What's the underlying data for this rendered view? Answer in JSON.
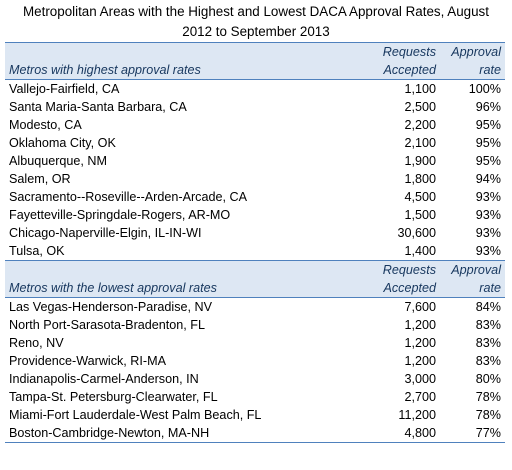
{
  "title_line1": "Metropolitan Areas with the Highest and Lowest DACA Approval Rates, August",
  "title_line2": "2012 to September 2013",
  "chart_data": {
    "type": "table",
    "title": "Metropolitan Areas with the Highest and Lowest DACA Approval Rates, August 2012 to September 2013",
    "columns": [
      "Requests Accepted",
      "Approval rate"
    ],
    "sections": [
      {
        "header": {
          "label": "Metros with highest approval rates",
          "col1_top": "Requests",
          "col1_bottom": "Accepted",
          "col2_top": "Approval",
          "col2_bottom": "rate"
        },
        "rows": [
          {
            "metro": "Vallejo-Fairfield, CA",
            "requests": "1,100",
            "rate": "100%"
          },
          {
            "metro": "Santa Maria-Santa Barbara, CA",
            "requests": "2,500",
            "rate": "96%"
          },
          {
            "metro": "Modesto, CA",
            "requests": "2,200",
            "rate": "95%"
          },
          {
            "metro": "Oklahoma City, OK",
            "requests": "2,100",
            "rate": "95%"
          },
          {
            "metro": "Albuquerque, NM",
            "requests": "1,900",
            "rate": "95%"
          },
          {
            "metro": "Salem, OR",
            "requests": "1,800",
            "rate": "94%"
          },
          {
            "metro": "Sacramento--Roseville--Arden-Arcade, CA",
            "requests": "4,500",
            "rate": "93%"
          },
          {
            "metro": "Fayetteville-Springdale-Rogers, AR-MO",
            "requests": "1,500",
            "rate": "93%"
          },
          {
            "metro": "Chicago-Naperville-Elgin, IL-IN-WI",
            "requests": "30,600",
            "rate": "93%"
          },
          {
            "metro": "Tulsa, OK",
            "requests": "1,400",
            "rate": "93%"
          }
        ]
      },
      {
        "header": {
          "label": "Metros with the lowest approval rates",
          "col1_top": "Requests",
          "col1_bottom": "Accepted",
          "col2_top": "Approval",
          "col2_bottom": "rate"
        },
        "rows": [
          {
            "metro": "Las Vegas-Henderson-Paradise, NV",
            "requests": "7,600",
            "rate": "84%"
          },
          {
            "metro": "North Port-Sarasota-Bradenton, FL",
            "requests": "1,200",
            "rate": "83%"
          },
          {
            "metro": "Reno, NV",
            "requests": "1,200",
            "rate": "83%"
          },
          {
            "metro": "Providence-Warwick, RI-MA",
            "requests": "1,200",
            "rate": "83%"
          },
          {
            "metro": "Indianapolis-Carmel-Anderson, IN",
            "requests": "3,000",
            "rate": "80%"
          },
          {
            "metro": "Tampa-St. Petersburg-Clearwater, FL",
            "requests": "2,700",
            "rate": "78%"
          },
          {
            "metro": "Miami-Fort Lauderdale-West Palm Beach, FL",
            "requests": "11,200",
            "rate": "78%"
          },
          {
            "metro": "Boston-Cambridge-Newton, MA-NH",
            "requests": "4,800",
            "rate": "77%"
          }
        ]
      }
    ]
  }
}
